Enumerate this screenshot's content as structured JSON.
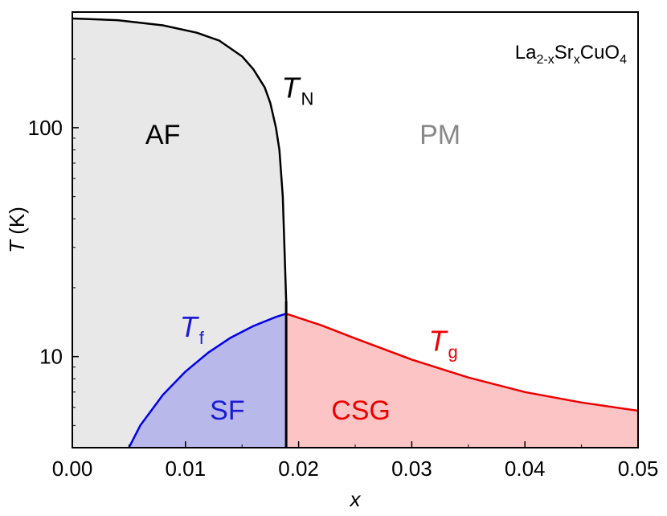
{
  "chart_data": {
    "type": "area",
    "title": "",
    "compound": {
      "parts": [
        {
          "text": "La",
          "sub": false
        },
        {
          "text": "2-x",
          "sub": true
        },
        {
          "text": "Sr",
          "sub": false
        },
        {
          "text": "x",
          "sub": true
        },
        {
          "text": "CuO",
          "sub": false
        },
        {
          "text": "4",
          "sub": true
        }
      ]
    },
    "xlabel": "x",
    "ylabel": {
      "italic": "T",
      "rest": " (K)"
    },
    "xlim": [
      0,
      0.05
    ],
    "ylim": [
      4,
      320
    ],
    "yscale": "log",
    "xticks": [
      {
        "value": 0,
        "label": "0.00"
      },
      {
        "value": 0.01,
        "label": "0.01"
      },
      {
        "value": 0.02,
        "label": "0.02"
      },
      {
        "value": 0.03,
        "label": "0.03"
      },
      {
        "value": 0.04,
        "label": "0.04"
      },
      {
        "value": 0.05,
        "label": "0.05"
      }
    ],
    "yticks": [
      {
        "value": 10,
        "label": "10"
      },
      {
        "value": 100,
        "label": "100"
      }
    ],
    "series": [
      {
        "symbol": "T_N",
        "color": "#000000",
        "points": [
          [
            0,
            300
          ],
          [
            0.004,
            295
          ],
          [
            0.008,
            280
          ],
          [
            0.011,
            260
          ],
          [
            0.013,
            240
          ],
          [
            0.015,
            205
          ],
          [
            0.016,
            180
          ],
          [
            0.017,
            150
          ],
          [
            0.0175,
            128
          ],
          [
            0.018,
            100
          ],
          [
            0.0183,
            80
          ],
          [
            0.0186,
            50
          ],
          [
            0.0188,
            25
          ],
          [
            0.0189,
            17.5
          ]
        ]
      },
      {
        "symbol": "T_f",
        "color": "#0000ee",
        "points": [
          [
            0.005,
            4.0
          ],
          [
            0.006,
            5.0
          ],
          [
            0.008,
            6.8
          ],
          [
            0.01,
            8.6
          ],
          [
            0.012,
            10.4
          ],
          [
            0.014,
            12.1
          ],
          [
            0.016,
            13.6
          ],
          [
            0.018,
            14.9
          ],
          [
            0.0189,
            15.4
          ]
        ]
      },
      {
        "symbol": "T_g",
        "color": "#ee0000",
        "points": [
          [
            0.0189,
            15.4
          ],
          [
            0.022,
            13.7
          ],
          [
            0.025,
            12.0
          ],
          [
            0.03,
            9.7
          ],
          [
            0.035,
            8.1
          ],
          [
            0.04,
            7.0
          ],
          [
            0.045,
            6.3
          ],
          [
            0.05,
            5.8
          ]
        ]
      }
    ],
    "regions": [
      {
        "label": "AF",
        "x": 0.008,
        "y": 85,
        "color": "#000000",
        "fill": "#e8e8e8"
      },
      {
        "label": "PM",
        "x": 0.0325,
        "y": 85,
        "color": "#888888",
        "fill": "none"
      },
      {
        "label": "SF",
        "x": 0.0137,
        "y": 5.3,
        "color": "#1a1ad6",
        "fill": "#b8b8ea"
      },
      {
        "label": "CSG",
        "x": 0.0255,
        "y": 5.3,
        "color": "#ee0000",
        "fill": "#fcc4c4"
      }
    ],
    "curve_labels": [
      {
        "symbol": "T",
        "sub": "N",
        "x": 0.0185,
        "y": 135,
        "color": "#000000"
      },
      {
        "symbol": "T",
        "sub": "f",
        "x": 0.0095,
        "y": 12.2,
        "color": "#1a1ad6"
      },
      {
        "symbol": "T",
        "sub": "g",
        "x": 0.0315,
        "y": 10.6,
        "color": "#ee0000"
      }
    ]
  }
}
